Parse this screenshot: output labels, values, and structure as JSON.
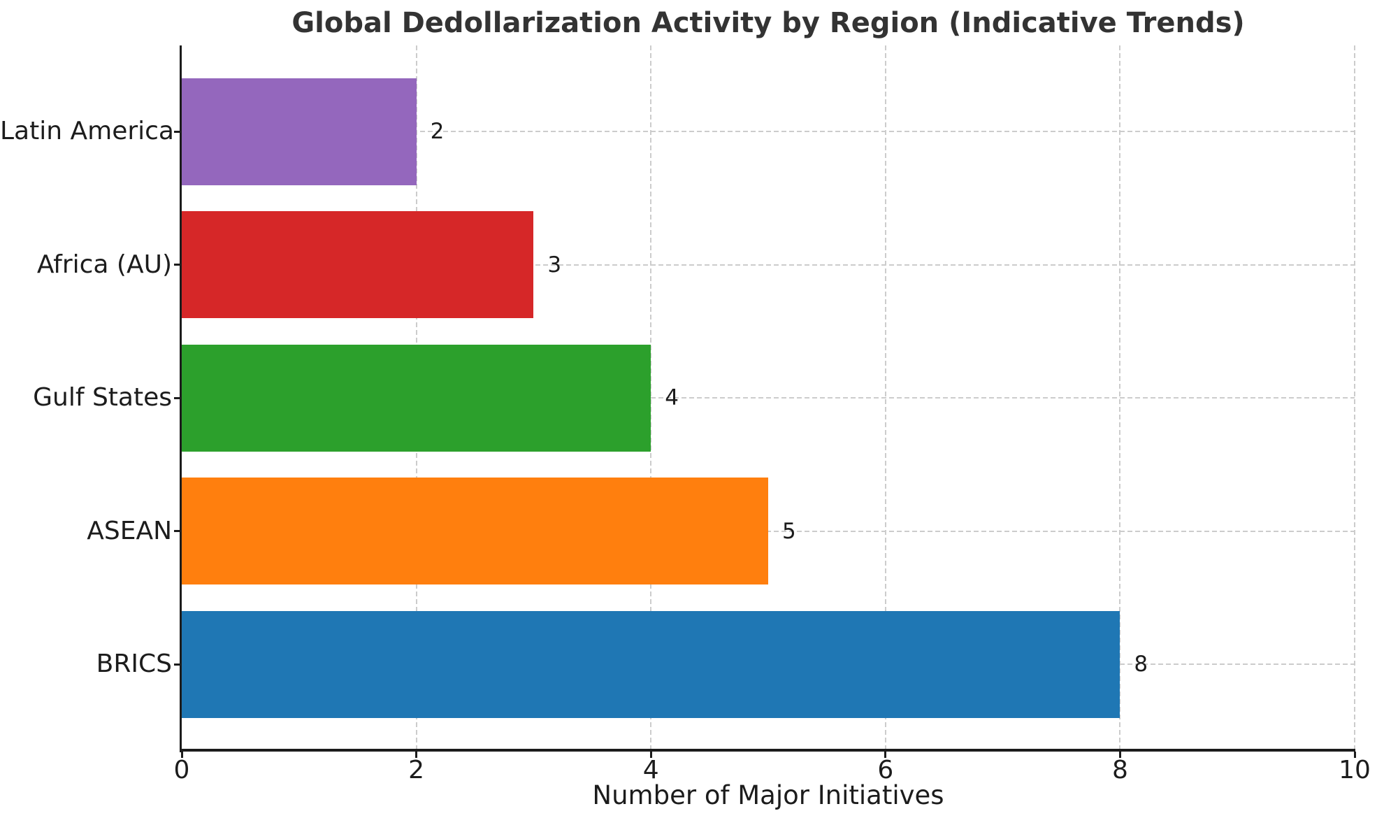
{
  "title": "Global Dedollarization Activity by Region (Indicative Trends)",
  "chart_data": {
    "type": "bar",
    "orientation": "horizontal",
    "title": "Global Dedollarization Activity by Region (Indicative Trends)",
    "xlabel": "Number of Major Initiatives",
    "ylabel": "",
    "xlim": [
      0,
      10
    ],
    "xticks": [
      "0",
      "2",
      "4",
      "6",
      "8",
      "10"
    ],
    "xtick_values": [
      0,
      2,
      4,
      6,
      8,
      10
    ],
    "grid": "dashed, both axes",
    "legend": "none",
    "value_labels_shown": true,
    "bars_top_to_bottom": [
      {
        "label": "Latin America",
        "value": 2,
        "value_label": "2",
        "color": "#9467bd"
      },
      {
        "label": "Africa (AU)",
        "value": 3,
        "value_label": "3",
        "color": "#d62728"
      },
      {
        "label": "Gulf States",
        "value": 4,
        "value_label": "4",
        "color": "#2ca02c"
      },
      {
        "label": "ASEAN",
        "value": 5,
        "value_label": "5",
        "color": "#ff7f0e"
      },
      {
        "label": "BRICS",
        "value": 8,
        "value_label": "8",
        "color": "#1f77b4"
      }
    ]
  },
  "colors": {
    "background": "#ffffff",
    "axis": "#1c1c1c",
    "grid": "#cccccc",
    "title_text": "#333333",
    "label_text": "#1c1c1c"
  }
}
